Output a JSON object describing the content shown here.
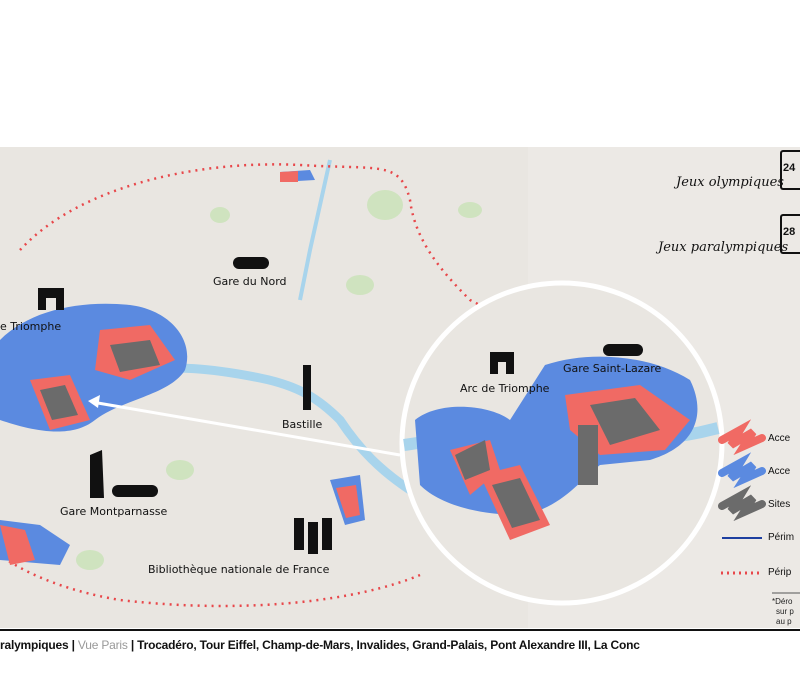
{
  "colors": {
    "map_bg": "#e9e6e1",
    "river": "#a8d4ec",
    "park": "#cfe3bf",
    "zone_red": "#f06a64",
    "zone_blue": "#5b8ae0",
    "sites_grey": "#6b6b6b",
    "perimeter_blue": "#1d3fa0",
    "peripherique_red": "#e8474a",
    "legend_bg": "#ece9e5"
  },
  "map": {
    "labels": {
      "arc_left": "e Triomphe",
      "gare_nord": "Gare du Nord",
      "bastille": "Bastille",
      "montparnasse": "Gare Montparnasse",
      "bnf": "Bibliothèque nationale de France"
    },
    "inset": {
      "arc": "Arc de Triomphe",
      "saint_lazare": "Gare Saint-Lazare"
    },
    "icons": [
      "arc-de-triomphe-icon",
      "train-icon",
      "bastille-column-icon",
      "montparnasse-tower-icon",
      "bnf-library-icon"
    ]
  },
  "legend": {
    "olympics": "Jeux olympiques",
    "olympics_date": "24",
    "paralympics": "Jeux paralympiques",
    "paralympics_date": "28",
    "items": [
      {
        "label": "Acce",
        "icon": "red-scribble"
      },
      {
        "label": "Acce",
        "icon": "blue-scribble"
      },
      {
        "label": "Sites",
        "icon": "grey-scribble"
      },
      {
        "label": "Périm",
        "icon": "blue-line"
      },
      {
        "label": "Périp",
        "icon": "red-dotted-line"
      }
    ],
    "note": [
      "*Déro",
      "sur p",
      "au p"
    ]
  },
  "caption": {
    "part1": "ralympiques | ",
    "part2": "Vue Paris",
    "part3": " | Trocadéro, Tour Eiffel, Champ-de-Mars, Invalides, Grand-Palais, Pont Alexandre III, La Conc"
  }
}
